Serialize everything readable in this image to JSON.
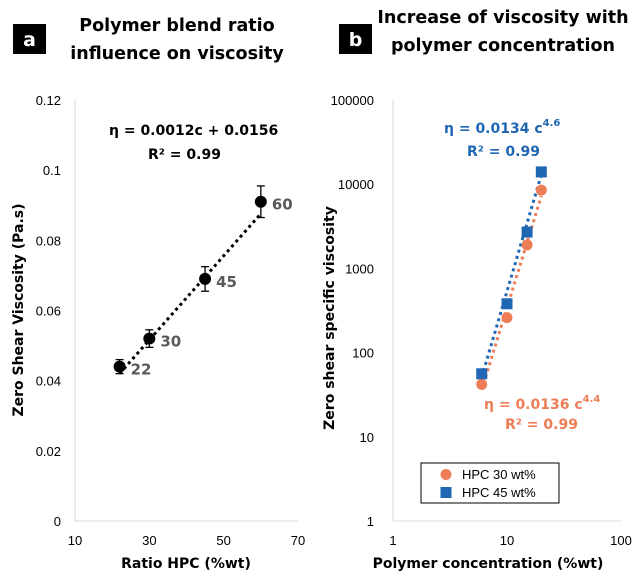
{
  "colors": {
    "series_black": "#000000",
    "hpc30": "#ED7D57",
    "hpc45": "#1F66B3",
    "data_label": "#595959",
    "panel_bg": "#000000"
  },
  "chart_data": [
    {
      "type": "scatter",
      "panel": "a",
      "title_lines": [
        "Polymer blend ratio",
        "influence on viscosity"
      ],
      "xlabel": "Ratio HPC (%wt)",
      "ylabel": "Zero Shear Viscosity (Pa.s)",
      "xlim": [
        10,
        70
      ],
      "ylim": [
        0,
        0.12
      ],
      "x_ticks": [
        10,
        30,
        50,
        70
      ],
      "y_ticks": [
        "0",
        "0.02",
        "0.04",
        "0.06",
        "0.08",
        "0.1",
        "0.12"
      ],
      "grid": false,
      "points": [
        {
          "x": 22,
          "y": 0.044,
          "err": 0.002,
          "label": "22"
        },
        {
          "x": 30,
          "y": 0.052,
          "err": 0.0025,
          "label": "30"
        },
        {
          "x": 45,
          "y": 0.069,
          "err": 0.0035,
          "label": "45"
        },
        {
          "x": 60,
          "y": 0.091,
          "err": 0.0045,
          "label": "60"
        }
      ],
      "trendline": {
        "type": "linear",
        "slope": 0.0012,
        "intercept": 0.0156,
        "style": "dotted"
      },
      "equation": "η  = 0.0012c + 0.0156",
      "r2": "R² = 0.99"
    },
    {
      "type": "scatter",
      "panel": "b",
      "title_lines": [
        "Increase of viscosity with",
        "polymer concentration"
      ],
      "xlabel": "Polymer concentration (%wt)",
      "ylabel": "Zero shear specific viscosity",
      "x_scale": "log",
      "y_scale": "log",
      "xlim": [
        1,
        100
      ],
      "ylim": [
        1,
        100000
      ],
      "x_ticks": [
        "1",
        "10",
        "100"
      ],
      "y_ticks": [
        "1",
        "10",
        "100",
        "1000",
        "10000",
        "100000"
      ],
      "grid": false,
      "legend_position": "bottom-left",
      "series": [
        {
          "name": "HPC 30 wt%",
          "marker": "circle",
          "points": [
            [
              6,
              42
            ],
            [
              10,
              260
            ],
            [
              15,
              1900
            ],
            [
              20,
              8500
            ]
          ],
          "fit": {
            "coef": 0.0136,
            "exp": 4.4
          },
          "equation_main": "η = 0.0136 c",
          "equation_exp": "4.4",
          "r2": "R² = 0.99"
        },
        {
          "name": "HPC 45 wt%",
          "marker": "square",
          "points": [
            [
              6,
              56
            ],
            [
              10,
              380
            ],
            [
              15,
              2700
            ],
            [
              20,
              14000
            ]
          ],
          "fit": {
            "coef": 0.0134,
            "exp": 4.6
          },
          "equation_main": "η = 0.0134 c",
          "equation_exp": "4.6",
          "r2": "R² = 0.99"
        }
      ]
    }
  ]
}
